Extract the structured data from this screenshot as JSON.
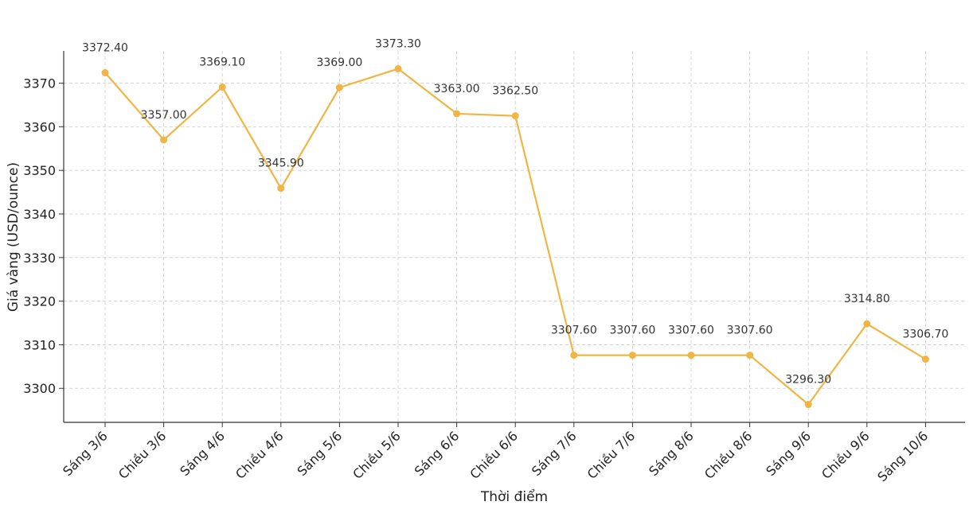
{
  "chart_data": {
    "type": "line",
    "title": "",
    "xlabel": "Thời điểm",
    "ylabel": "Giá vàng (USD/ounce)",
    "categories": [
      "Sáng 3/6",
      "Chiều 3/6",
      "Sáng 4/6",
      "Chiều 4/6",
      "Sáng 5/6",
      "Chiều 5/6",
      "Sáng 6/6",
      "Chiều 6/6",
      "Sáng 7/6",
      "Chiều 7/6",
      "Sáng 8/6",
      "Chiều 8/6",
      "Sáng 9/6",
      "Chiều 9/6",
      "Sáng 10/6"
    ],
    "values": [
      3372.4,
      3357.0,
      3369.1,
      3345.9,
      3369.0,
      3373.3,
      3363.0,
      3362.5,
      3307.6,
      3307.6,
      3307.6,
      3307.6,
      3296.3,
      3314.8,
      3306.7
    ],
    "data_labels": [
      "3372.40",
      "3357.00",
      "3369.10",
      "3345.90",
      "3369.00",
      "3373.30",
      "3363.00",
      "3362.50",
      "3307.60",
      "3307.60",
      "3307.60",
      "3307.60",
      "3296.30",
      "3314.80",
      "3306.70"
    ],
    "y_ticks": [
      3300,
      3310,
      3320,
      3330,
      3340,
      3350,
      3360,
      3370
    ],
    "ylim": [
      3292.2,
      3377.4
    ],
    "grid": true,
    "line_color": "#F0B544",
    "grid_color": "#cccccc"
  }
}
